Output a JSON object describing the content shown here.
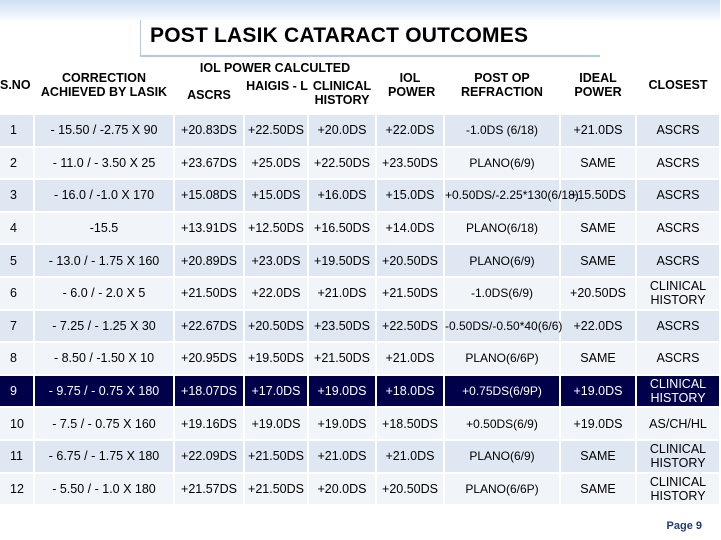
{
  "title": "POST LASIK CATARACT  OUTCOMES",
  "header": {
    "sno": "S.NO",
    "correction": "CORRECTION ACHIEVED BY LASIK",
    "iol_power_calc": "IOL POWER CALCULTED",
    "ascrs": "ASCRS",
    "haigis": "HAIGIS - L",
    "clinical_history": "CLINICAL HISTORY",
    "iol_power": "IOL POWER",
    "post_op_refraction": "POST OP REFRACTION",
    "ideal_power": "IDEAL POWER",
    "closest": "CLOSEST"
  },
  "rows": [
    {
      "sno": "1",
      "correction": "- 15.50 / -2.75 X 90",
      "ascrs": "+20.83DS",
      "haigis": "+22.50DS",
      "clinical": "+20.0DS",
      "iol": "+22.0DS",
      "refraction": "-1.0DS (6/18)",
      "ideal": "+21.0DS",
      "closest": "ASCRS"
    },
    {
      "sno": "2",
      "correction": "- 11.0 / - 3.50 X 25",
      "ascrs": "+23.67DS",
      "haigis": "+25.0DS",
      "clinical": "+22.50DS",
      "iol": "+23.50DS",
      "refraction": "PLANO(6/9)",
      "ideal": "SAME",
      "closest": "ASCRS"
    },
    {
      "sno": "3",
      "correction": "- 16.0 / -1.0 X 170",
      "ascrs": "+15.08DS",
      "haigis": "+15.0DS",
      "clinical": "+16.0DS",
      "iol": "+15.0DS",
      "refraction": "+0.50DS/-2.25*130(6/18)",
      "ideal": "+15.50DS",
      "closest": "ASCRS"
    },
    {
      "sno": "4",
      "correction": "-15.5",
      "ascrs": "+13.91DS",
      "haigis": "+12.50DS",
      "clinical": "+16.50DS",
      "iol": "+14.0DS",
      "refraction": "PLANO(6/18)",
      "ideal": "SAME",
      "closest": "ASCRS"
    },
    {
      "sno": "5",
      "correction": "- 13.0 / - 1.75 X 160",
      "ascrs": "+20.89DS",
      "haigis": "+23.0DS",
      "clinical": "+19.50DS",
      "iol": "+20.50DS",
      "refraction": "PLANO(6/9)",
      "ideal": "SAME",
      "closest": "ASCRS"
    },
    {
      "sno": "6",
      "correction": "- 6.0 / - 2.0 X 5",
      "ascrs": "+21.50DS",
      "haigis": "+22.0DS",
      "clinical": "+21.0DS",
      "iol": "+21.50DS",
      "refraction": "-1.0DS(6/9)",
      "ideal": "+20.50DS",
      "closest": "CLINICAL HISTORY"
    },
    {
      "sno": "7",
      "correction": "- 7.25 / - 1.25 X 30",
      "ascrs": "+22.67DS",
      "haigis": "+20.50DS",
      "clinical": "+23.50DS",
      "iol": "+22.50DS",
      "refraction": "-0.50DS/-0.50*40(6/6)",
      "ideal": "+22.0DS",
      "closest": "ASCRS"
    },
    {
      "sno": "8",
      "correction": "- 8.50 / -1.50 X 10",
      "ascrs": "+20.95DS",
      "haigis": "+19.50DS",
      "clinical": "+21.50DS",
      "iol": "+21.0DS",
      "refraction": "PLANO(6/6P)",
      "ideal": "SAME",
      "closest": "ASCRS"
    },
    {
      "sno": "9",
      "correction": "- 9.75 / - 0.75 X 180",
      "ascrs": "+18.07DS",
      "haigis": "+17.0DS",
      "clinical": "+19.0DS",
      "iol": "+18.0DS",
      "refraction": "+0.75DS(6/9P)",
      "ideal": "+19.0DS",
      "closest": "CLINICAL HISTORY"
    },
    {
      "sno": "10",
      "correction": "- 7.5 / - 0.75 X 160",
      "ascrs": "+19.16DS",
      "haigis": "+19.0DS",
      "clinical": "+19.0DS",
      "iol": "+18.50DS",
      "refraction": "+0.50DS(6/9)",
      "ideal": "+19.0DS",
      "closest": "AS/CH/HL"
    },
    {
      "sno": "11",
      "correction": "- 6.75 / - 1.75 X 180",
      "ascrs": "+22.09DS",
      "haigis": "+21.50DS",
      "clinical": "+21.0DS",
      "iol": "+21.0DS",
      "refraction": "PLANO(6/9)",
      "ideal": "SAME",
      "closest": "CLINICAL HISTORY"
    },
    {
      "sno": "12",
      "correction": "- 5.50 / - 1.0 X 180",
      "ascrs": "+21.57DS",
      "haigis": "+21.50DS",
      "clinical": "+20.0DS",
      "iol": "+20.50DS",
      "refraction": "PLANO(6/6P)",
      "ideal": "SAME",
      "closest": "CLINICAL HISTORY"
    }
  ],
  "highlight_row": "9",
  "page_label": "Page 9",
  "colors": {
    "row_dark": "#dfe7f3",
    "row_light": "#f1f4f9",
    "highlight": "#00004a",
    "page_label": "#1f3e6e"
  }
}
